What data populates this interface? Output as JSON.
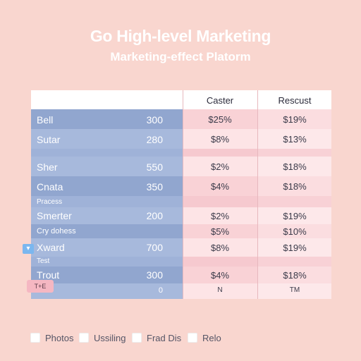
{
  "header": {
    "title": "Go High-level Marketing",
    "subtitle": "Marketing-effect Platorm"
  },
  "table": {
    "columns": [
      "",
      "Caster",
      "Rescust"
    ],
    "rows": [
      {
        "label": "Bell",
        "value": "300",
        "c1": "$25%",
        "c2": "$19%"
      },
      {
        "label": "Sutar",
        "value": "280",
        "c1": "$8%",
        "c2": "$13%"
      },
      {
        "label": "Sher",
        "value": "550",
        "c1": "$2%",
        "c2": "$18%"
      },
      {
        "label": "Cnata",
        "value": "350",
        "c1": "$4%",
        "c2": "$18%"
      },
      {
        "label": "Pracess",
        "value": "",
        "c1": "",
        "c2": ""
      },
      {
        "label": "Smerter",
        "value": "200",
        "c1": "$2%",
        "c2": "$19%"
      },
      {
        "label": "Cry dohess",
        "value": "",
        "c1": "$5%",
        "c2": "$10%"
      },
      {
        "label": "Xward",
        "value": "700",
        "c1": "$8%",
        "c2": "$19%"
      },
      {
        "label": "Test",
        "value": "",
        "c1": "",
        "c2": ""
      },
      {
        "label": "Trout",
        "value": "300",
        "c1": "$4%",
        "c2": "$18%"
      },
      {
        "label": "",
        "value": "0",
        "c1": "N",
        "c2": "TM"
      }
    ]
  },
  "badges": {
    "pink_badge": "T+E"
  },
  "legend": {
    "items": [
      "Photos",
      "Ussiling",
      "Frad Dis",
      "Relo"
    ]
  },
  "colors": {
    "background": "#f9d6cf",
    "blue_column": "#91a6cf",
    "pink_column": "#f9d2d6"
  }
}
